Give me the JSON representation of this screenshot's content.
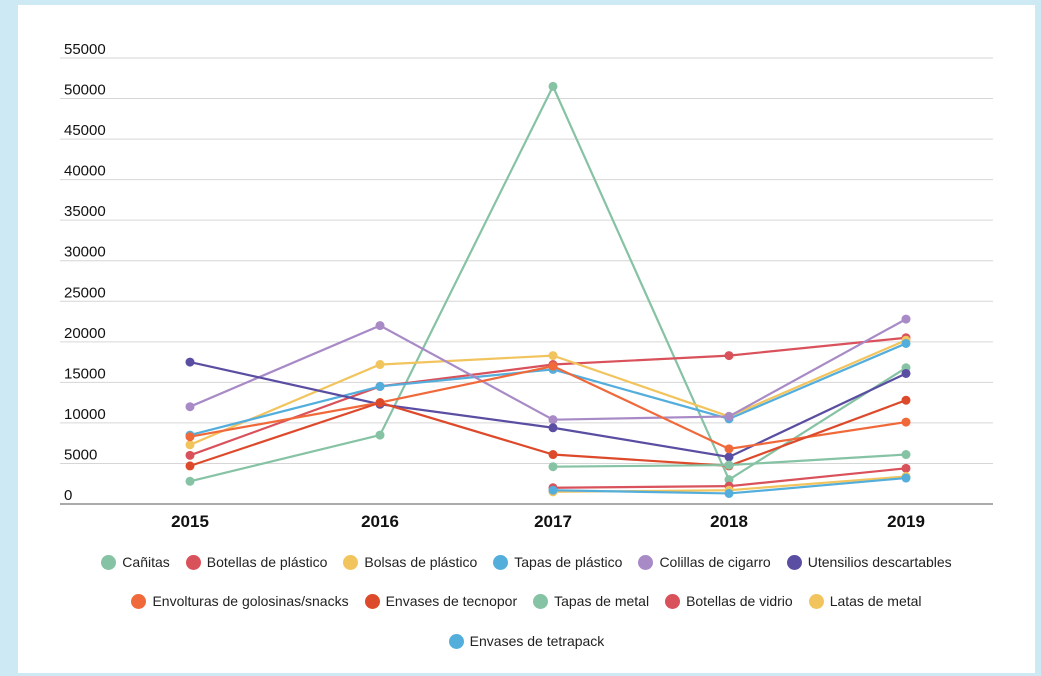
{
  "chart_data": {
    "type": "line",
    "title": "",
    "xlabel": "",
    "ylabel": "",
    "x": [
      "2015",
      "2016",
      "2017",
      "2018",
      "2019"
    ],
    "ylim": [
      0,
      55000
    ],
    "yticks": [
      "0",
      "5000",
      "10000",
      "15000",
      "20000",
      "25000",
      "30000",
      "35000",
      "40000",
      "45000",
      "50000",
      "55000"
    ],
    "grid": "horizontal",
    "legend_position": "bottom",
    "series": [
      {
        "name": "Cañitas",
        "color": "#86c2a4",
        "values": [
          2800,
          8500,
          51500,
          3000,
          16800
        ]
      },
      {
        "name": "Botellas de plástico",
        "color": "#d9515a",
        "values": [
          6000,
          14500,
          17200,
          18300,
          20500
        ]
      },
      {
        "name": "Bolsas de plástico",
        "color": "#f2c45e",
        "values": [
          7300,
          17200,
          18300,
          10800,
          20200
        ]
      },
      {
        "name": "Tapas de plástico",
        "color": "#54aedc",
        "values": [
          8500,
          14500,
          16600,
          10500,
          19800
        ]
      },
      {
        "name": "Colillas de cigarro",
        "color": "#a88bc6",
        "values": [
          12000,
          22000,
          10400,
          10800,
          22800
        ]
      },
      {
        "name": "Utensilios descartables",
        "color": "#5a4ea2",
        "values": [
          17500,
          12300,
          9400,
          5800,
          16100
        ]
      },
      {
        "name": "Envolturas de golosinas/snacks",
        "color": "#f0693a",
        "values": [
          8300,
          12500,
          17000,
          6800,
          10100
        ]
      },
      {
        "name": "Envases de tecnopor",
        "color": "#dd4a2b",
        "values": [
          4700,
          12500,
          6100,
          4700,
          12800
        ]
      },
      {
        "name": "Tapas de metal",
        "color": "#86c2a4",
        "values": [
          null,
          null,
          4600,
          4800,
          6100
        ]
      },
      {
        "name": "Botellas de vidrio",
        "color": "#d9515a",
        "values": [
          null,
          null,
          2000,
          2200,
          4400
        ]
      },
      {
        "name": "Latas de metal",
        "color": "#f2c45e",
        "values": [
          null,
          null,
          1500,
          1700,
          3400
        ]
      },
      {
        "name": "Envases de tetrapack",
        "color": "#54aedc",
        "values": [
          null,
          null,
          1700,
          1300,
          3200
        ]
      }
    ]
  },
  "legend_rows": [
    [
      0,
      1,
      2,
      3,
      4,
      5
    ],
    [
      6,
      7,
      8,
      9,
      10
    ],
    [
      11
    ]
  ]
}
